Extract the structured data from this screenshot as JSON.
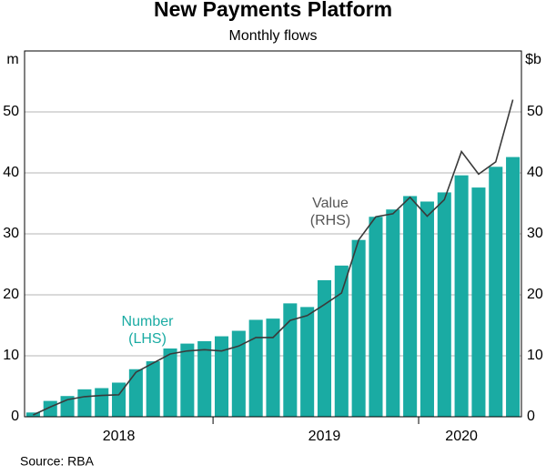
{
  "chart_data": {
    "type": "bar_line",
    "title": "New Payments Platform",
    "subtitle": "Monthly flows",
    "y_unit": "m",
    "y2_unit": "$b",
    "source": "Source:   RBA",
    "categories": [
      null,
      null,
      null,
      null,
      null,
      "2018",
      null,
      null,
      null,
      null,
      null,
      null,
      null,
      null,
      null,
      null,
      null,
      "2019",
      null,
      null,
      null,
      null,
      null,
      null,
      null,
      "2020",
      null,
      null,
      null
    ],
    "series": [
      {
        "name": "Number",
        "annotation": [
          "Number",
          "(LHS)"
        ],
        "type": "bar",
        "color": "#1aaba3",
        "values": [
          0.7,
          2.6,
          3.4,
          4.5,
          4.7,
          5.6,
          7.8,
          9.1,
          11.2,
          12.0,
          12.4,
          13.2,
          14.1,
          15.9,
          16.1,
          18.6,
          18.0,
          22.4,
          24.8,
          29.0,
          32.8,
          34.0,
          36.2,
          35.3,
          36.8,
          39.6,
          37.6,
          41.0,
          42.6
        ]
      },
      {
        "name": "Value",
        "annotation": [
          "Value",
          "(RHS)"
        ],
        "type": "line",
        "color": "#3a3a3a",
        "axis": "y2",
        "values": [
          0.3,
          1.6,
          2.8,
          3.3,
          3.5,
          3.6,
          7.3,
          8.8,
          10.3,
          10.8,
          11.0,
          10.8,
          11.6,
          13.0,
          13.0,
          15.8,
          16.6,
          18.4,
          20.3,
          29.0,
          32.8,
          33.3,
          36.0,
          32.9,
          35.6,
          43.5,
          39.8,
          41.8,
          52.0
        ]
      }
    ],
    "ylim": [
      0,
      60
    ],
    "yticks": [
      0,
      10,
      20,
      30,
      40,
      50
    ],
    "y2lim": [
      0,
      60
    ],
    "y2ticks": [
      0,
      10,
      20,
      30,
      40,
      50
    ],
    "grid": true
  }
}
